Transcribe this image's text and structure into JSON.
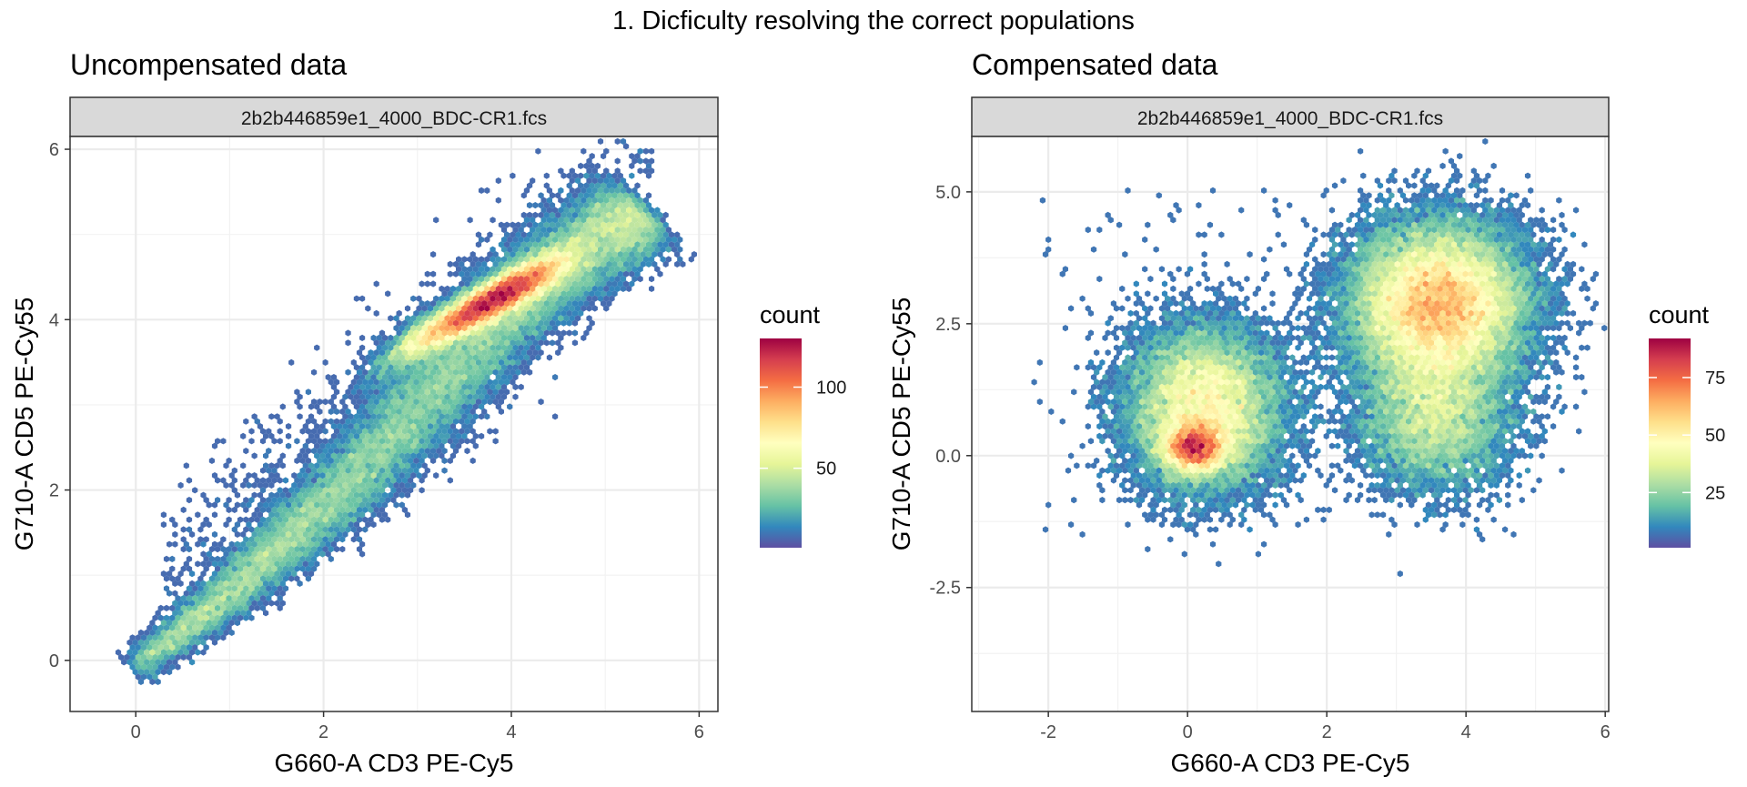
{
  "figure": {
    "suptitle": "1. Dicficulty resolving the correct populations"
  },
  "chart_data": [
    {
      "type": "scatter",
      "render": "hexbin density",
      "title": "Uncompensated data",
      "facet_label": "2b2b446859e1_4000_BDC-CR1.fcs",
      "xlabel": "G660-A CD3 PE-Cy5",
      "ylabel": "G710-A CD5 PE-Cy55",
      "xlim": [
        -0.7,
        6.2
      ],
      "ylim": [
        -0.6,
        6.15
      ],
      "xticks": [
        0,
        2,
        4,
        6
      ],
      "xtick_labels": [
        "0",
        "2",
        "4",
        "6"
      ],
      "yticks": [
        0,
        2,
        4,
        6
      ],
      "ytick_labels": [
        "0",
        "2",
        "4",
        "6"
      ],
      "grid": true,
      "legend": {
        "title": "count",
        "position": "right",
        "range": [
          1,
          130
        ],
        "ticks": [
          50,
          100
        ],
        "tick_labels": [
          "50",
          "100"
        ]
      },
      "colors": [
        "#5e4fa2",
        "#3288bd",
        "#66c2a5",
        "#abdda4",
        "#e6f598",
        "#ffffbf",
        "#fee08b",
        "#fdae61",
        "#f46d43",
        "#d53e4f",
        "#9e0142"
      ],
      "series": [
        {
          "name": "main diagonal",
          "x": [
            0.0,
            0.5,
            1.0,
            1.5,
            2.0,
            2.5,
            3.0,
            3.5,
            4.0,
            4.5,
            5.0,
            5.4
          ],
          "y": [
            -0.1,
            0.35,
            0.8,
            1.3,
            1.8,
            2.35,
            2.95,
            3.55,
            4.15,
            4.6,
            5.0,
            5.3
          ]
        },
        {
          "name": "dense core",
          "x": [
            3.0,
            3.5,
            3.8,
            4.0,
            4.3
          ],
          "y": [
            3.75,
            4.05,
            4.25,
            4.35,
            4.45
          ]
        }
      ]
    },
    {
      "type": "scatter",
      "render": "hexbin density",
      "title": "Compensated data",
      "facet_label": "2b2b446859e1_4000_BDC-CR1.fcs",
      "xlabel": "G660-A CD3 PE-Cy5",
      "ylabel": "G710-A CD5 PE-Cy55",
      "xlim": [
        -3.1,
        6.05
      ],
      "ylim": [
        -4.85,
        6.05
      ],
      "xticks": [
        -2,
        0,
        2,
        4,
        6
      ],
      "xtick_labels": [
        "-2",
        "0",
        "2",
        "4",
        "6"
      ],
      "yticks": [
        -2.5,
        0.0,
        2.5,
        5.0
      ],
      "ytick_labels": [
        "-2.5",
        "0.0",
        "2.5",
        "5.0"
      ],
      "grid": true,
      "legend": {
        "title": "count",
        "position": "right",
        "range": [
          1,
          92
        ],
        "ticks": [
          25,
          50,
          75
        ],
        "tick_labels": [
          "25",
          "50",
          "75"
        ]
      },
      "colors": [
        "#5e4fa2",
        "#3288bd",
        "#66c2a5",
        "#abdda4",
        "#e6f598",
        "#ffffbf",
        "#fee08b",
        "#fdae61",
        "#f46d43",
        "#d53e4f",
        "#9e0142"
      ],
      "series": [
        {
          "name": "population 1",
          "x": [
            0.1,
            0.1,
            0.2,
            0.3,
            0.5
          ],
          "y": [
            0.1,
            0.4,
            1.0,
            1.6,
            2.1
          ]
        },
        {
          "name": "population 2",
          "x": [
            3.4,
            3.6,
            3.7,
            3.9,
            4.1
          ],
          "y": [
            2.2,
            2.6,
            2.9,
            3.1,
            3.4
          ]
        }
      ]
    }
  ]
}
